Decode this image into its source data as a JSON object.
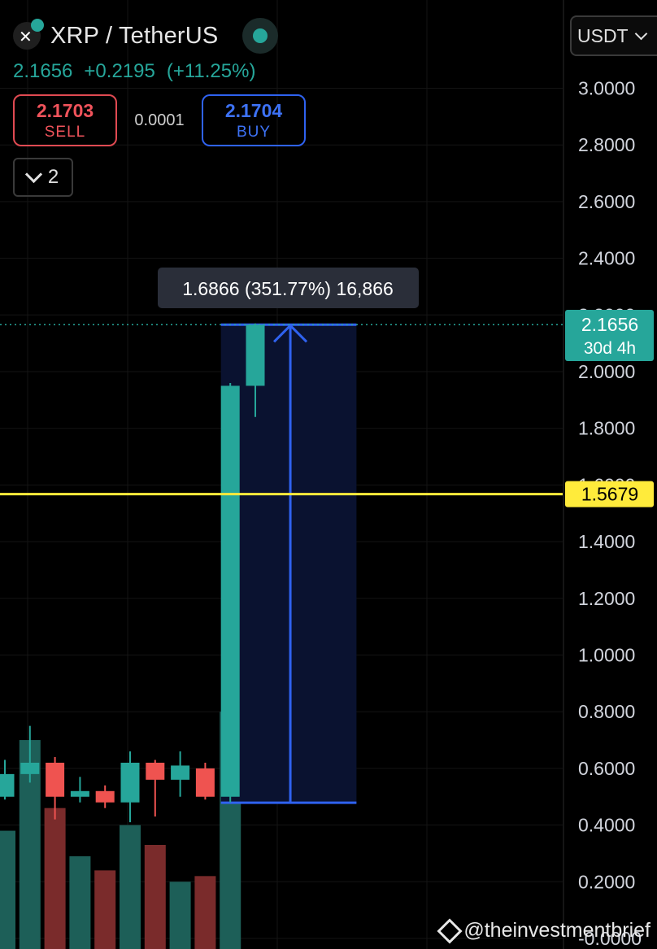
{
  "header": {
    "title": "XRP / TetherUS",
    "last_price": "2.1656",
    "change": "+0.2195",
    "change_pct": "(+11.25%)",
    "sell_price": "2.1703",
    "sell_label": "SELL",
    "spread": "0.0001",
    "buy_price": "2.1704",
    "buy_label": "BUY",
    "collapse_count": "2"
  },
  "currency_selector": "USDT",
  "watermark": "@theinvestmentbrief",
  "colors": {
    "up": "#26a69a",
    "down": "#ef5350",
    "measure": "#2f62f0",
    "horizontal_line": "#ffeb3b"
  },
  "chart_data": {
    "type": "candlestick",
    "ylim": [
      0,
      3.1
    ],
    "y_ticks": [
      "3.0000",
      "2.8000",
      "2.6000",
      "2.4000",
      "2.2000",
      "2.0000",
      "1.8000",
      "1.6000",
      "1.4000",
      "1.2000",
      "1.0000",
      "0.8000",
      "0.6000",
      "0.4000",
      "0.2000",
      "-0.0000"
    ],
    "candles": [
      {
        "open": 0.5,
        "high": 0.63,
        "low": 0.49,
        "close": 0.58
      },
      {
        "open": 0.58,
        "high": 0.75,
        "low": 0.55,
        "close": 0.62
      },
      {
        "open": 0.62,
        "high": 0.64,
        "low": 0.42,
        "close": 0.5
      },
      {
        "open": 0.5,
        "high": 0.57,
        "low": 0.48,
        "close": 0.52
      },
      {
        "open": 0.52,
        "high": 0.54,
        "low": 0.46,
        "close": 0.48
      },
      {
        "open": 0.48,
        "high": 0.66,
        "low": 0.41,
        "close": 0.62
      },
      {
        "open": 0.62,
        "high": 0.63,
        "low": 0.43,
        "close": 0.56
      },
      {
        "open": 0.56,
        "high": 0.66,
        "low": 0.5,
        "close": 0.61
      },
      {
        "open": 0.6,
        "high": 0.62,
        "low": 0.49,
        "close": 0.5
      },
      {
        "open": 0.5,
        "high": 1.96,
        "low": 0.48,
        "close": 1.95
      },
      {
        "open": 1.95,
        "high": 2.17,
        "low": 1.84,
        "close": 2.1656
      }
    ],
    "volumes": [
      0.38,
      0.7,
      0.46,
      0.29,
      0.24,
      0.4,
      0.33,
      0.2,
      0.22,
      0.8,
      0.0
    ],
    "volume_colors": [
      "up",
      "up",
      "down",
      "up",
      "down",
      "up",
      "down",
      "up",
      "down",
      "up",
      "up"
    ],
    "last_price_label": "2.1656",
    "countdown_label": "30d 4h",
    "horizontal_line": {
      "value": 1.5679,
      "label": "1.5679"
    },
    "measure": {
      "from": 0.479,
      "to": 2.1656,
      "start_index": 9,
      "end_index": 13,
      "label": "1.6866 (351.77%) 16,866"
    }
  }
}
